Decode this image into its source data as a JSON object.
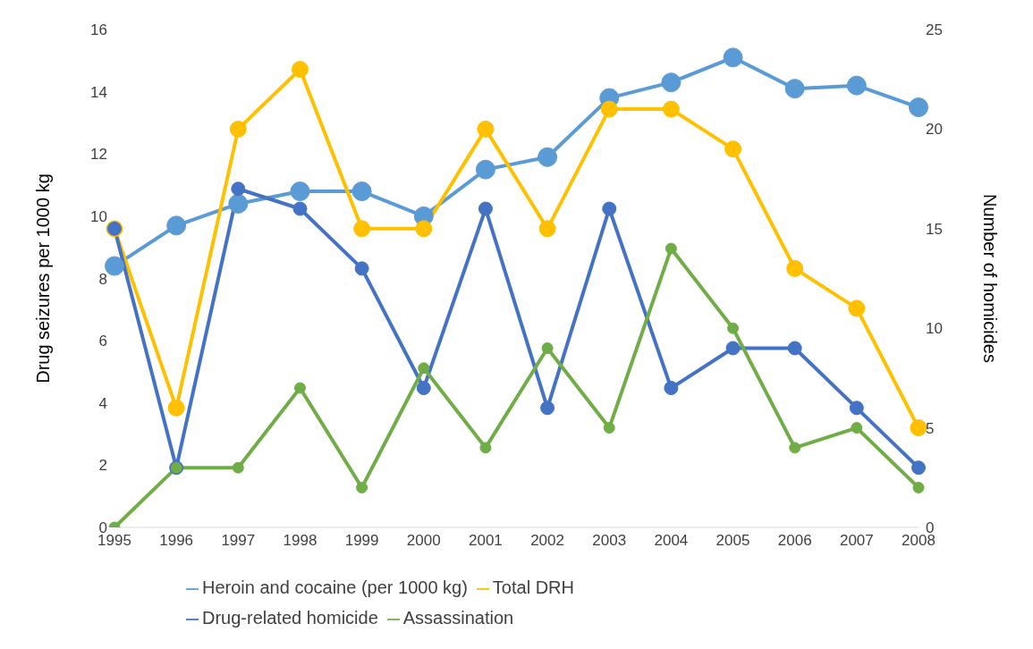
{
  "chart_data": {
    "type": "line",
    "categories": [
      "1995",
      "1996",
      "1997",
      "1998",
      "1999",
      "2000",
      "2001",
      "2002",
      "2003",
      "2004",
      "2005",
      "2006",
      "2007",
      "2008"
    ],
    "ylabel": "Drug seizures per 1000 kg",
    "y2label": "Number of homicides",
    "ylim": [
      0,
      16
    ],
    "yticks": [
      0,
      2,
      4,
      6,
      8,
      10,
      12,
      14,
      16
    ],
    "y2lim": [
      0,
      25
    ],
    "y2ticks": [
      0,
      5,
      10,
      15,
      20,
      25
    ],
    "grid": false,
    "legend": "bottom",
    "marker": "circle",
    "line_style": "solid",
    "series": [
      {
        "name": "Heroin and cocaine (per 1000 kg)",
        "color": "#5b9bd5",
        "values": [
          8.4,
          9.7,
          10.4,
          10.8,
          10.8,
          10.0,
          11.5,
          11.9,
          13.8,
          14.3,
          15.1,
          14.1,
          14.2,
          13.5
        ]
      },
      {
        "name": "Total DRH",
        "color": "#ffc000",
        "axis": "y2",
        "values": [
          15,
          6,
          20,
          23,
          15,
          15,
          20,
          15,
          21,
          21,
          19,
          13,
          11,
          5
        ]
      },
      {
        "name": "Drug-related homicide",
        "color": "#4472c4",
        "axis": "y2",
        "values": [
          15,
          3,
          17,
          16,
          13,
          7,
          16,
          6,
          16,
          7,
          9,
          9,
          6,
          3
        ]
      },
      {
        "name": "Assassination",
        "color": "#70ad47",
        "axis": "y2",
        "values": [
          0,
          3,
          3,
          7,
          2,
          8,
          4,
          9,
          5,
          14,
          10,
          4,
          5,
          2
        ]
      }
    ]
  }
}
